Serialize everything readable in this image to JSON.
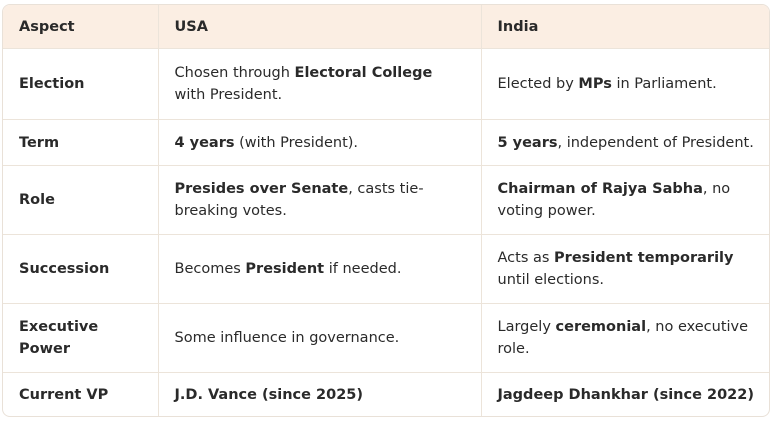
{
  "headers": {
    "aspect": "Aspect",
    "usa": "USA",
    "india": "India"
  },
  "rows": [
    {
      "aspect": "Election",
      "usa": {
        "pre": "Chosen through ",
        "bold": "Electoral College",
        "post": " with President."
      },
      "india": {
        "pre": "Elected by ",
        "bold": "MPs",
        "post": " in Parliament."
      }
    },
    {
      "aspect": "Term",
      "usa": {
        "pre": "",
        "bold": "4 years",
        "post": " (with President)."
      },
      "india": {
        "pre": "",
        "bold": "5 years",
        "post": ", independent of President."
      }
    },
    {
      "aspect": "Role",
      "usa": {
        "pre": "",
        "bold": "Presides over Senate",
        "post": ", casts tie-breaking votes."
      },
      "india": {
        "pre": "",
        "bold": "Chairman of Rajya Sabha",
        "post": ", no voting power."
      }
    },
    {
      "aspect": "Succession",
      "usa": {
        "pre": "Becomes ",
        "bold": "President",
        "post": " if needed."
      },
      "india": {
        "pre": "Acts as ",
        "bold": "President temporarily",
        "post": " until elections."
      }
    },
    {
      "aspect": "Executive Power",
      "usa": {
        "pre": "Some influence in governance.",
        "bold": "",
        "post": ""
      },
      "india": {
        "pre": "Largely ",
        "bold": "ceremonial",
        "post": ", no executive role."
      }
    },
    {
      "aspect": "Current VP",
      "usa": {
        "pre": "",
        "bold": "J.D. Vance (since 2025)",
        "post": ""
      },
      "india": {
        "pre": "",
        "bold": "Jagdeep Dhankhar (since 2022)",
        "post": ""
      }
    }
  ]
}
